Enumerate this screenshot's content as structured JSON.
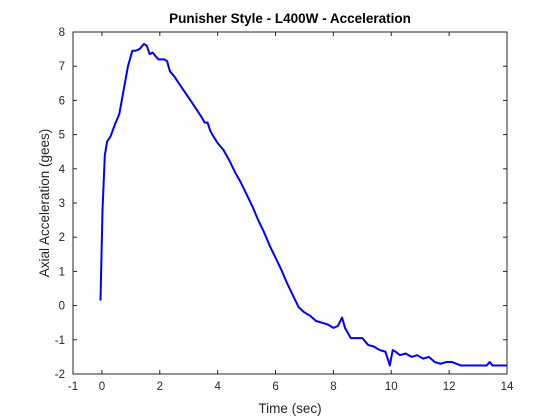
{
  "chart_data": {
    "type": "line",
    "title": "Punisher Style - L400W - Acceleration",
    "xlabel": "Time (sec)",
    "ylabel": "Axial Acceleration (gees)",
    "xlim": [
      -1,
      14
    ],
    "ylim": [
      -2,
      8
    ],
    "xticks": [
      "-1",
      "0",
      "2",
      "4",
      "6",
      "8",
      "10",
      "12",
      "14"
    ],
    "xtick_values": [
      -1,
      0,
      2,
      4,
      6,
      8,
      10,
      12,
      14
    ],
    "yticks": [
      "-2",
      "-1",
      "0",
      "1",
      "2",
      "3",
      "4",
      "5",
      "6",
      "7",
      "8"
    ],
    "ytick_values": [
      -2,
      -1,
      0,
      1,
      2,
      3,
      4,
      5,
      6,
      7,
      8
    ],
    "grid": false,
    "line_color": "#0000ff",
    "series": [
      {
        "x": [
          -0.05,
          0.02,
          0.1,
          0.18,
          0.3,
          0.45,
          0.6,
          0.75,
          0.9,
          1.05,
          1.15,
          1.3,
          1.45,
          1.55,
          1.65,
          1.75,
          1.85,
          1.95,
          2.05,
          2.15,
          2.25,
          2.35,
          2.5,
          2.7,
          2.9,
          3.1,
          3.3,
          3.45,
          3.55,
          3.65,
          3.75,
          3.85,
          4.0,
          4.2,
          4.4,
          4.6,
          4.8,
          5.0,
          5.2,
          5.4,
          5.6,
          5.8,
          6.0,
          6.2,
          6.4,
          6.6,
          6.8,
          7.0,
          7.2,
          7.4,
          7.6,
          7.8,
          8.0,
          8.15,
          8.3,
          8.4,
          8.5,
          8.6,
          8.8,
          9.0,
          9.2,
          9.4,
          9.6,
          9.8,
          9.95,
          10.05,
          10.15,
          10.3,
          10.5,
          10.7,
          10.9,
          11.1,
          11.3,
          11.5,
          11.7,
          11.9,
          12.1,
          12.4,
          12.7,
          13.0,
          13.3,
          13.4,
          13.5,
          13.7,
          14.0
        ],
        "y": [
          0.15,
          2.8,
          4.4,
          4.8,
          4.95,
          5.3,
          5.6,
          6.3,
          7.0,
          7.45,
          7.45,
          7.5,
          7.65,
          7.6,
          7.35,
          7.4,
          7.3,
          7.2,
          7.2,
          7.2,
          7.15,
          6.85,
          6.7,
          6.45,
          6.2,
          5.95,
          5.7,
          5.5,
          5.35,
          5.35,
          5.1,
          4.95,
          4.75,
          4.55,
          4.25,
          3.9,
          3.6,
          3.25,
          2.9,
          2.5,
          2.15,
          1.75,
          1.4,
          1.05,
          0.65,
          0.3,
          -0.05,
          -0.2,
          -0.3,
          -0.45,
          -0.5,
          -0.55,
          -0.65,
          -0.6,
          -0.35,
          -0.65,
          -0.8,
          -0.95,
          -0.95,
          -0.95,
          -1.15,
          -1.2,
          -1.3,
          -1.35,
          -1.75,
          -1.3,
          -1.35,
          -1.45,
          -1.4,
          -1.5,
          -1.45,
          -1.55,
          -1.5,
          -1.65,
          -1.7,
          -1.65,
          -1.65,
          -1.75,
          -1.75,
          -1.75,
          -1.75,
          -1.65,
          -1.75,
          -1.75,
          -1.75
        ]
      }
    ]
  }
}
